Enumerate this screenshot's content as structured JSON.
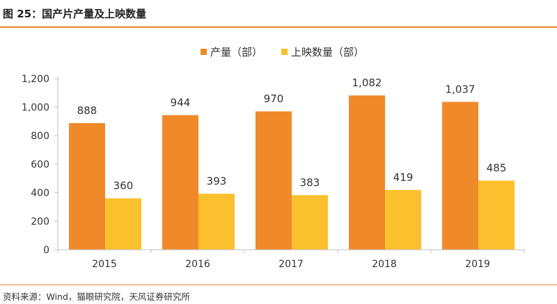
{
  "figure": {
    "title": "图 25：国产片产量及上映数量",
    "source": "资料来源：Wind，猫眼研究院，天风证券研究所"
  },
  "colors": {
    "production": "#ef8a2a",
    "released": "#fbc02d",
    "rule": "#e8852c"
  },
  "chart_data": {
    "type": "bar",
    "title": "",
    "categories": [
      "2015",
      "2016",
      "2017",
      "2018",
      "2019"
    ],
    "series": [
      {
        "name": "产量（部）",
        "values": [
          888,
          944,
          970,
          1082,
          1037
        ],
        "labels": [
          "888",
          "944",
          "970",
          "1,082",
          "1,037"
        ]
      },
      {
        "name": "上映数量（部）",
        "values": [
          360,
          393,
          383,
          419,
          485
        ],
        "labels": [
          "360",
          "393",
          "383",
          "419",
          "485"
        ]
      }
    ],
    "ylim": [
      0,
      1200
    ],
    "yticks": [
      0,
      200,
      400,
      600,
      800,
      1000,
      1200
    ],
    "ytick_labels": [
      "0",
      "200",
      "400",
      "600",
      "800",
      "1,000",
      "1,200"
    ],
    "xlabel": "",
    "ylabel": "",
    "legend_position": "top-center",
    "grid": false
  }
}
